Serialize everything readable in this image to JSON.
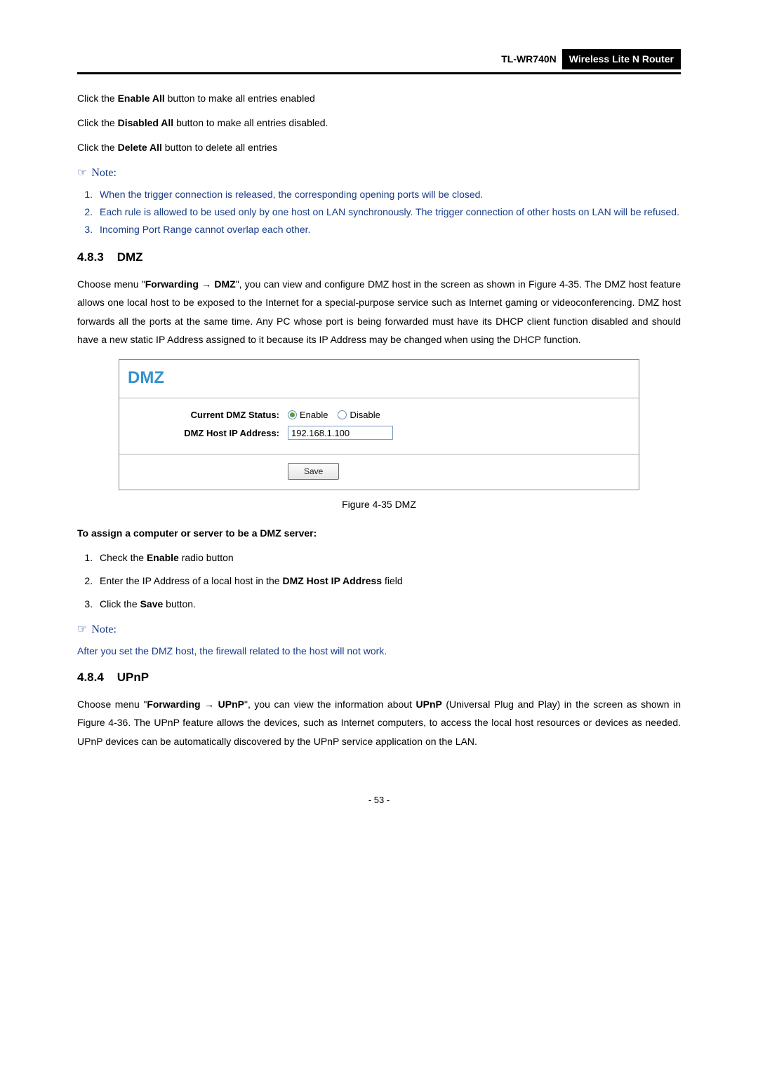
{
  "header": {
    "model": "TL-WR740N",
    "product": "Wireless  Lite  N  Router"
  },
  "intro": {
    "p1_a": "Click the ",
    "p1_b": "Enable All",
    "p1_c": " button to make all entries enabled",
    "p2_a": "Click the ",
    "p2_b": "Disabled All",
    "p2_c": " button to make all entries disabled.",
    "p3_a": "Click the ",
    "p3_b": "Delete All",
    "p3_c": " button to delete all entries"
  },
  "note1": {
    "label": "Note:",
    "items": [
      "When the trigger connection is released, the corresponding opening ports will be closed.",
      "Each rule is allowed to be used only by one host on LAN synchronously. The trigger connection of other hosts on LAN will be refused.",
      "Incoming Port Range cannot overlap each other."
    ]
  },
  "section_dmz": {
    "num": "4.8.3",
    "title": "DMZ",
    "para_a": "Choose menu \"",
    "para_b": "Forwarding",
    "arrow": " → ",
    "para_c": "DMZ",
    "para_d": "\", you can view and configure DMZ host in the screen as shown in Figure 4-35. The DMZ host feature allows one local host to be exposed to the Internet for a special-purpose service such as Internet gaming or videoconferencing. DMZ host forwards all the ports at the same time. Any PC whose port is being forwarded must have its DHCP client function disabled and should have a new static IP Address assigned to it because its IP Address may be changed when using the DHCP function."
  },
  "screenshot": {
    "title": "DMZ",
    "status_label": "Current DMZ Status:",
    "enable": "Enable",
    "disable": "Disable",
    "ip_label": "DMZ Host IP Address:",
    "ip_value": "192.168.1.100",
    "save": "Save"
  },
  "caption_dmz": "Figure 4-35    DMZ",
  "assign": {
    "heading": "To assign a computer or server to be a DMZ server:",
    "s1_a": "Check the ",
    "s1_b": "Enable",
    "s1_c": " radio button",
    "s2_a": "Enter the IP Address of a local host in the ",
    "s2_b": "DMZ Host IP Address",
    "s2_c": " field",
    "s3_a": "Click the ",
    "s3_b": "Save",
    "s3_c": " button."
  },
  "note2": {
    "label": "Note:",
    "text": "After you set the DMZ host, the firewall related to the host will not work."
  },
  "section_upnp": {
    "num": "4.8.4",
    "title": "UPnP",
    "para_a": "Choose menu \"",
    "para_b": "Forwarding",
    "arrow": " → ",
    "para_c": "UPnP",
    "para_d": "\", you can view the information about ",
    "para_e": "UPnP",
    "para_f": " (Universal Plug and Play) in the screen as shown in Figure 4-36. The UPnP feature allows the devices, such as Internet computers, to access the local host resources or devices as needed. UPnP devices can be automatically discovered by the UPnP service application on the LAN."
  },
  "page": "- 53 -"
}
